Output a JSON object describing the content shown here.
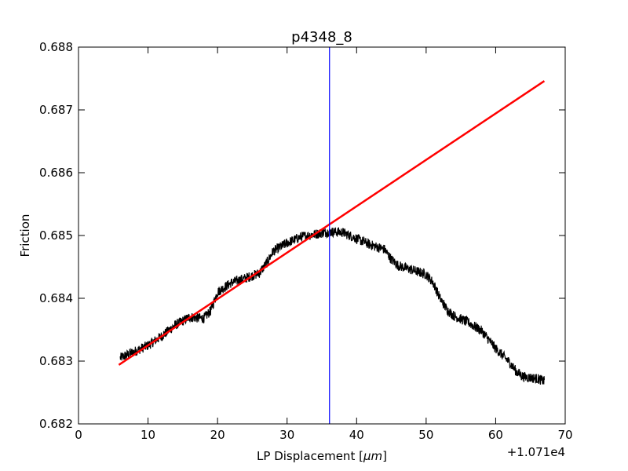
{
  "chart_data": {
    "type": "line",
    "title": "p4348_8",
    "xlabel": "LP Displacement [",
    "xlabel_unit": "μm",
    "xlabel_close": "]",
    "ylabel": "Friction",
    "x_offset_label": "+1.071e4",
    "xlim": [
      0,
      70
    ],
    "ylim": [
      0.682,
      0.688
    ],
    "x_ticks": [
      0,
      10,
      20,
      30,
      40,
      50,
      60,
      70
    ],
    "x_tick_labels": [
      "0",
      "10",
      "20",
      "30",
      "40",
      "50",
      "60",
      "70"
    ],
    "y_ticks": [
      0.682,
      0.683,
      0.684,
      0.685,
      0.686,
      0.687,
      0.688
    ],
    "y_tick_labels": [
      "0.682",
      "0.683",
      "0.684",
      "0.685",
      "0.686",
      "0.687",
      "0.688"
    ],
    "grid": false,
    "series": [
      {
        "color": "#000000",
        "noise_amplitude": 8e-05,
        "x": [
          6,
          8,
          10,
          12,
          14,
          16,
          18,
          19,
          20,
          22,
          24,
          26,
          27,
          28,
          30,
          32,
          34,
          36,
          38,
          40,
          42,
          44,
          45,
          46,
          48,
          50,
          51,
          52,
          53,
          54,
          56,
          58,
          60,
          62,
          63,
          64,
          66,
          67
        ],
        "y": [
          0.68305,
          0.68315,
          0.68325,
          0.6834,
          0.68358,
          0.6837,
          0.68368,
          0.6838,
          0.6841,
          0.68425,
          0.68432,
          0.6844,
          0.68455,
          0.68475,
          0.68488,
          0.68498,
          0.68502,
          0.68506,
          0.68505,
          0.68495,
          0.68485,
          0.68478,
          0.68462,
          0.68452,
          0.68445,
          0.68438,
          0.68425,
          0.684,
          0.68382,
          0.68372,
          0.68362,
          0.68348,
          0.6832,
          0.68298,
          0.68283,
          0.68275,
          0.68272,
          0.68268
        ]
      },
      {
        "color": "#ff0000",
        "x": [
          5.8,
          67
        ],
        "y": [
          0.68294,
          0.68746
        ]
      }
    ],
    "vlines": [
      {
        "x": 36.1,
        "color": "#0000ff"
      }
    ]
  }
}
